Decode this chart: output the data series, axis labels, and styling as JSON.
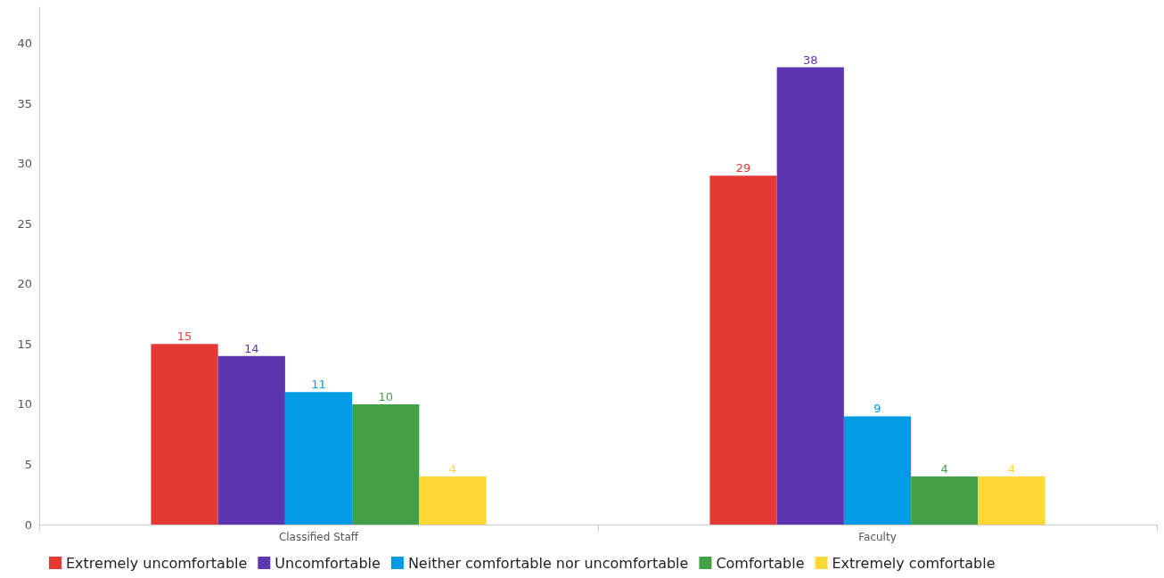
{
  "chart_data": {
    "type": "bar",
    "categories": [
      "Classified Staff",
      "Faculty"
    ],
    "series": [
      {
        "name": "Extremely uncomfortable",
        "color": "#e53935",
        "values": [
          15,
          29
        ]
      },
      {
        "name": "Uncomfortable",
        "color": "#5e35b1",
        "values": [
          14,
          38
        ]
      },
      {
        "name": "Neither comfortable nor uncomfortable",
        "color": "#039be5",
        "values": [
          11,
          9
        ]
      },
      {
        "name": "Comfortable",
        "color": "#43a047",
        "values": [
          10,
          4
        ]
      },
      {
        "name": "Extremely comfortable",
        "color": "#fdd835",
        "values": [
          4,
          4
        ]
      }
    ],
    "ylim": [
      0,
      43
    ],
    "yticks": [
      0,
      5,
      10,
      15,
      20,
      25,
      30,
      35,
      40
    ],
    "grid": false,
    "legend": "bottom left",
    "data_labels": true
  }
}
